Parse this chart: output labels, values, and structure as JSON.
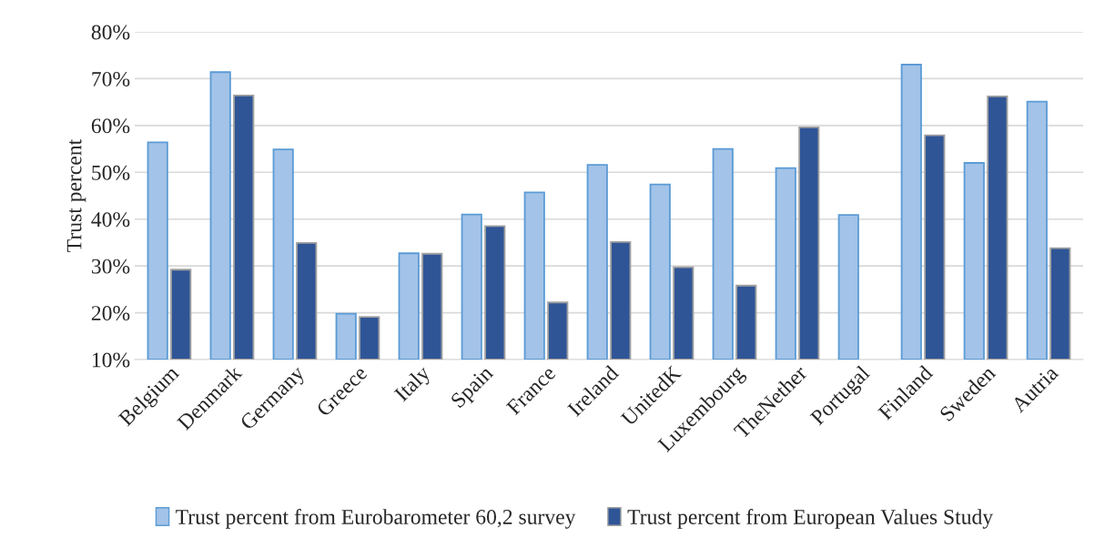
{
  "chart_data": {
    "type": "bar",
    "ylabel": "Trust percent",
    "categories": [
      "Belgium",
      "Denmark",
      "Germany",
      "Greece",
      "Italy",
      "Spain",
      "France",
      "Ireland",
      "UnitedK",
      "Luxembourg",
      "TheNether",
      "Portugal",
      "Finland",
      "Sweden",
      "Autria"
    ],
    "series": [
      {
        "name": "Trust percent from Eurobarometer 60,2 survey",
        "color": "#a3c3e8",
        "values": [
          56.4,
          71.4,
          54.9,
          19.8,
          32.7,
          41.0,
          45.7,
          51.6,
          47.4,
          55.0,
          50.9,
          40.9,
          73.0,
          52.0,
          65.1
        ]
      },
      {
        "name": "Trust percent from European Values Study",
        "color": "#2f5597",
        "values": [
          29.2,
          66.4,
          34.9,
          19.1,
          32.6,
          38.5,
          22.2,
          35.1,
          29.7,
          25.8,
          59.6,
          null,
          57.9,
          66.2,
          33.8
        ]
      }
    ],
    "ylim": [
      10,
      80
    ],
    "yticks": [
      {
        "value": 10,
        "label": "10%"
      },
      {
        "value": 20,
        "label": "20%"
      },
      {
        "value": 30,
        "label": "30%"
      },
      {
        "value": 40,
        "label": "40%"
      },
      {
        "value": 50,
        "label": "50%"
      },
      {
        "value": 60,
        "label": "60%"
      },
      {
        "value": 70,
        "label": "70%"
      },
      {
        "value": 80,
        "label": "80%"
      }
    ],
    "grid": "y",
    "legend": "bottom"
  }
}
